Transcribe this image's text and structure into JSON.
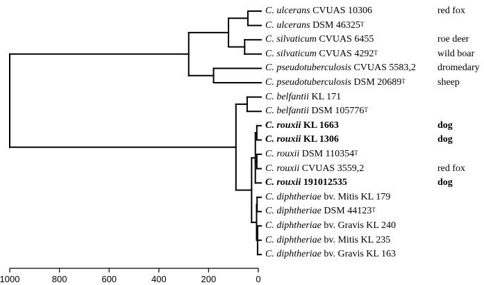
{
  "leaves": [
    {
      "species": "C. ulcerans",
      "strain": "CVUAS 10306",
      "type_strain": "",
      "host": "red fox",
      "bold": false
    },
    {
      "species": "C. ulcerans",
      "strain": "DSM 46325",
      "type_strain": "T",
      "host": "",
      "bold": false
    },
    {
      "species": "C. silvaticum",
      "strain": "CVUAS 6455",
      "type_strain": "",
      "host": "roe deer",
      "bold": false
    },
    {
      "species": "C. silvaticum",
      "strain": "CVUAS 4292",
      "type_strain": "T",
      "host": "wild boar",
      "bold": false
    },
    {
      "species": "C. pseudotuberculosis",
      "strain": "CVUAS 5583,2",
      "type_strain": "",
      "host": "dromedary",
      "bold": false
    },
    {
      "species": "C. pseudotuberculosis",
      "strain": "DSM 20689",
      "type_strain": "T",
      "host": "sheep",
      "bold": false
    },
    {
      "species": "C. belfantii",
      "strain": "KL 171",
      "type_strain": "",
      "host": "",
      "bold": false
    },
    {
      "species": "C. belfantii",
      "strain": "DSM 105776",
      "type_strain": "T",
      "host": "",
      "bold": false
    },
    {
      "species": "C. rouxii",
      "strain": "KL 1663",
      "type_strain": "",
      "host": "dog",
      "bold": true
    },
    {
      "species": "C. rouxii",
      "strain": "KL 1306",
      "type_strain": "",
      "host": "dog",
      "bold": true
    },
    {
      "species": "C. rouxii",
      "strain": "DSM 110354",
      "type_strain": "T",
      "host": "",
      "bold": false
    },
    {
      "species": "C. rouxii",
      "strain": "CVUAS 3559,2",
      "type_strain": "",
      "host": "red fox",
      "bold": false
    },
    {
      "species": "C. rouxii",
      "strain": "191012535",
      "type_strain": "",
      "host": "dog",
      "bold": true
    },
    {
      "species": "C. diphtheriae",
      "strain": "bv. Mitis KL 179",
      "type_strain": "",
      "host": "",
      "bold": false
    },
    {
      "species": "C. diphtheriae",
      "strain": "DSM 44123",
      "type_strain": "T",
      "host": "",
      "bold": false
    },
    {
      "species": "C. diphtheriae",
      "strain": "bv. Gravis KL 240",
      "type_strain": "",
      "host": "",
      "bold": false
    },
    {
      "species": "C. diphtheriae",
      "strain": "bv. Mitis KL 235",
      "type_strain": "",
      "host": "",
      "bold": false
    },
    {
      "species": "C. diphtheriae",
      "strain": "bv. Gravis KL 163",
      "type_strain": "",
      "host": "",
      "bold": false
    }
  ],
  "axis": {
    "ticks": [
      "1000",
      "800",
      "600",
      "400",
      "200",
      "0"
    ],
    "tick_values": [
      1000,
      800,
      600,
      400,
      200,
      0
    ],
    "range": [
      1000,
      0
    ]
  },
  "tree": {
    "nodes": [
      {
        "id": "root",
        "height": 1000
      },
      {
        "id": "upper",
        "height": 280
      },
      {
        "id": "ulc_sil",
        "height": 120
      },
      {
        "id": "ulc",
        "height": 42
      },
      {
        "id": "sil",
        "height": 55
      },
      {
        "id": "pse",
        "height": 180
      },
      {
        "id": "lower",
        "height": 90
      },
      {
        "id": "bel",
        "height": 45
      },
      {
        "id": "rou_dip",
        "height": 27
      },
      {
        "id": "rou",
        "height": 12
      },
      {
        "id": "rou_a",
        "height": 6
      },
      {
        "id": "rou_b",
        "height": 6
      },
      {
        "id": "dip",
        "height": 7
      },
      {
        "id": "dip_a",
        "height": 5
      },
      {
        "id": "dip_b",
        "height": 3
      }
    ]
  }
}
